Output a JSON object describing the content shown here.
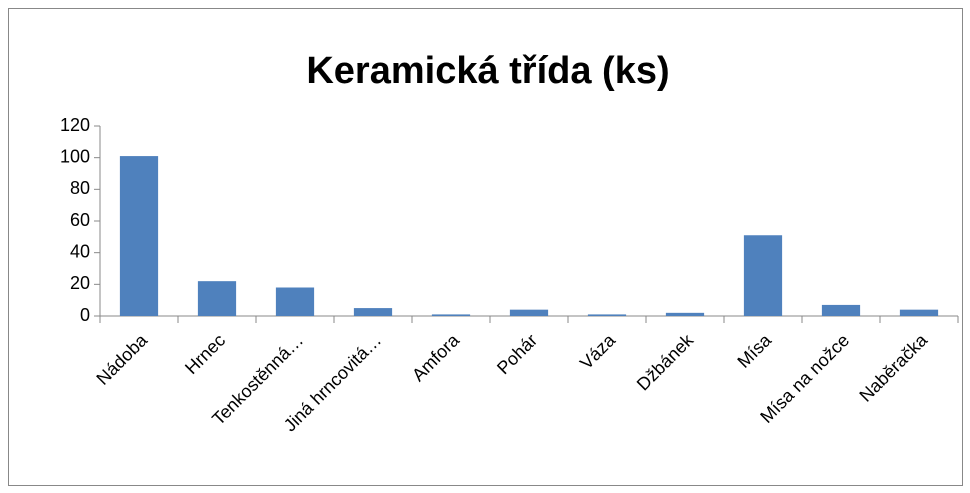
{
  "chart_data": {
    "type": "bar",
    "title": "Keramická třída (ks)",
    "categories": [
      "Nádoba",
      "Hrnec",
      "Tenkostěnná…",
      "Jiná hrncovitá…",
      "Amfora",
      "Pohár",
      "Váza",
      "Džbánek",
      "Mísa",
      "Mísa na nožce",
      "Naběračka"
    ],
    "values": [
      101,
      22,
      18,
      5,
      1,
      4,
      1,
      2,
      51,
      7,
      4
    ],
    "color": "#4f81bd",
    "ylim": [
      0,
      120
    ],
    "yticks": [
      0,
      20,
      40,
      60,
      80,
      100,
      120
    ],
    "grid": false
  }
}
